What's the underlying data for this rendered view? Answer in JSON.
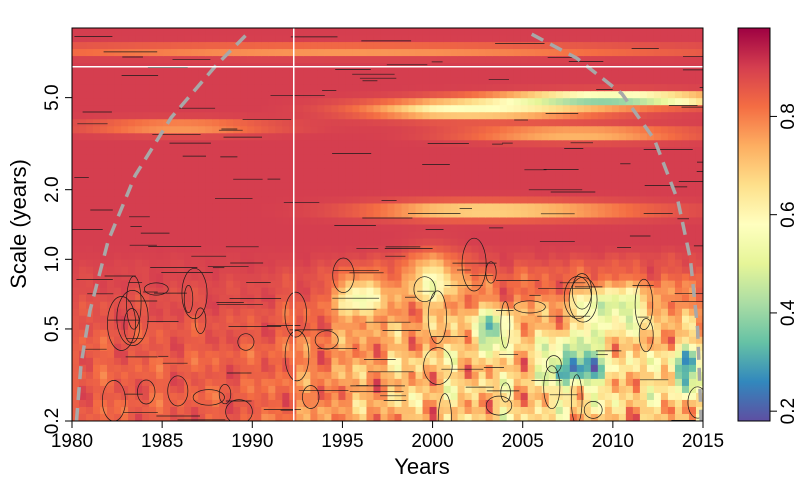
{
  "chart_data": {
    "type": "heatmap",
    "title": "",
    "xlabel": "Years",
    "ylabel": "Scale (years)",
    "xlim": [
      1980,
      2015
    ],
    "ylim": [
      0.2,
      10
    ],
    "y_scale": "log",
    "x_ticks": [
      1980,
      1985,
      1990,
      1995,
      2000,
      2005,
      2010,
      2015
    ],
    "x_tick_labels": [
      "1980",
      "1985",
      "1990",
      "1995",
      "2000",
      "2005",
      "2010",
      "2015"
    ],
    "y_ticks": [
      0.2,
      0.5,
      1.0,
      2.0,
      5.0
    ],
    "y_tick_labels": [
      "0.2",
      "0.5",
      "1.0",
      "2.0",
      "5.0"
    ],
    "vertical_marker_x": 1992.3,
    "horizontal_marker_y": 6.8,
    "colorbar": {
      "min": 0.18,
      "max": 0.98,
      "ticks": [
        0.2,
        0.4,
        0.6,
        0.8
      ],
      "tick_labels": [
        "0.2",
        "0.4",
        "0.6",
        "0.8"
      ],
      "palette": [
        "#5E4FA2",
        "#3288BD",
        "#66C2A5",
        "#ABDDA4",
        "#E6F598",
        "#FFFFBF",
        "#FEE08B",
        "#FDAE61",
        "#F46D43",
        "#D53E4F",
        "#9E0142"
      ]
    },
    "cone_color": "#a8a8a8",
    "contour_color": "#1a1a1a",
    "grid": false,
    "legend": "colorbar-right"
  }
}
